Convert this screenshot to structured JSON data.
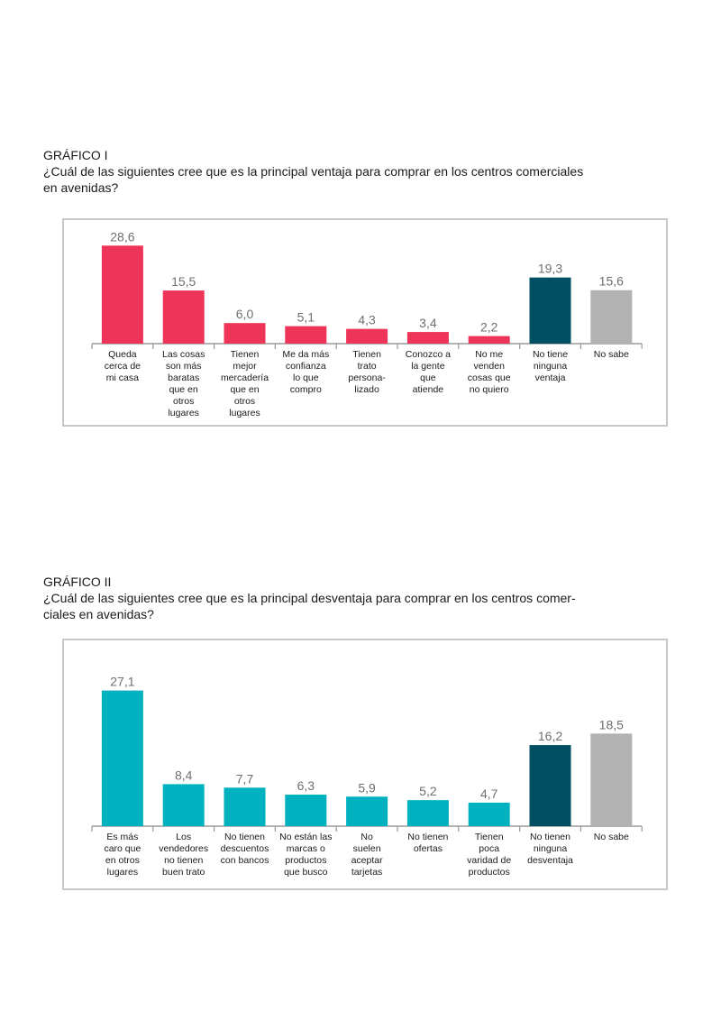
{
  "charts": [
    {
      "label": "GRÁFICO I",
      "question_lines": [
        "¿Cuál de las siguientes cree que es la principal ventaja para comprar en los centros comerciales",
        "en avenidas?"
      ]
    },
    {
      "label": "GRÁFICO II",
      "question_lines": [
        "¿Cuál de las siguientes cree que es la principal desventaja para comprar en los centros comer-",
        "ciales en avenidas?"
      ]
    }
  ],
  "chart_data": [
    {
      "type": "bar",
      "title": "GRÁFICO I",
      "categories": [
        [
          "Queda",
          "cerca de",
          "mi casa"
        ],
        [
          "Las cosas",
          "son más",
          "baratas",
          "que en",
          "otros",
          "lugares"
        ],
        [
          "Tienen",
          "mejor",
          "mercadería",
          "que en",
          "otros",
          "lugares"
        ],
        [
          "Me da más",
          "confianza",
          "lo que",
          "compro"
        ],
        [
          "Tienen",
          "trato",
          "persona-",
          "lizado"
        ],
        [
          "Conozco a",
          "la gente",
          "que",
          "atiende"
        ],
        [
          "No me",
          "venden",
          "cosas que",
          "no quiero"
        ],
        [
          "No tiene",
          "ninguna",
          "ventaja"
        ],
        [
          "No sabe"
        ]
      ],
      "values": [
        28.6,
        15.5,
        6.0,
        5.1,
        4.3,
        3.4,
        2.2,
        19.3,
        15.6
      ],
      "value_labels": [
        "28,6",
        "15,5",
        "6,0",
        "5,1",
        "4,3",
        "3,4",
        "2,2",
        "19,3",
        "15,6"
      ],
      "colors": [
        "#ee3458",
        "#ee3458",
        "#ee3458",
        "#ee3458",
        "#ee3458",
        "#ee3458",
        "#ee3458",
        "#004f63",
        "#b2b2b2"
      ],
      "ylim": [
        0,
        30
      ],
      "grid": false,
      "legend": "none"
    },
    {
      "type": "bar",
      "title": "GRÁFICO II",
      "categories": [
        [
          "Es más",
          "caro que",
          "en otros",
          "lugares"
        ],
        [
          "Los",
          "vendedores",
          "no tienen",
          "buen trato"
        ],
        [
          "No tienen",
          "descuentos",
          "con bancos"
        ],
        [
          "No están las",
          "marcas o",
          "productos",
          "que busco"
        ],
        [
          "No",
          "suelen",
          "aceptar",
          "tarjetas"
        ],
        [
          "No tienen",
          "ofertas"
        ],
        [
          "Tienen",
          "poca",
          "varidad de",
          "productos"
        ],
        [
          "No tienen",
          "ninguna",
          "desventaja"
        ],
        [
          "No sabe"
        ]
      ],
      "values": [
        27.1,
        8.4,
        7.7,
        6.3,
        5.9,
        5.2,
        4.7,
        16.2,
        18.5
      ],
      "value_labels": [
        "27,1",
        "8,4",
        "7,7",
        "6,3",
        "5,9",
        "5,2",
        "4,7",
        "16,2",
        "18,5"
      ],
      "colors": [
        "#00b2bf",
        "#00b2bf",
        "#00b2bf",
        "#00b2bf",
        "#00b2bf",
        "#00b2bf",
        "#00b2bf",
        "#004f63",
        "#b2b2b2"
      ],
      "ylim": [
        0,
        30
      ],
      "grid": false,
      "legend": "none"
    }
  ]
}
